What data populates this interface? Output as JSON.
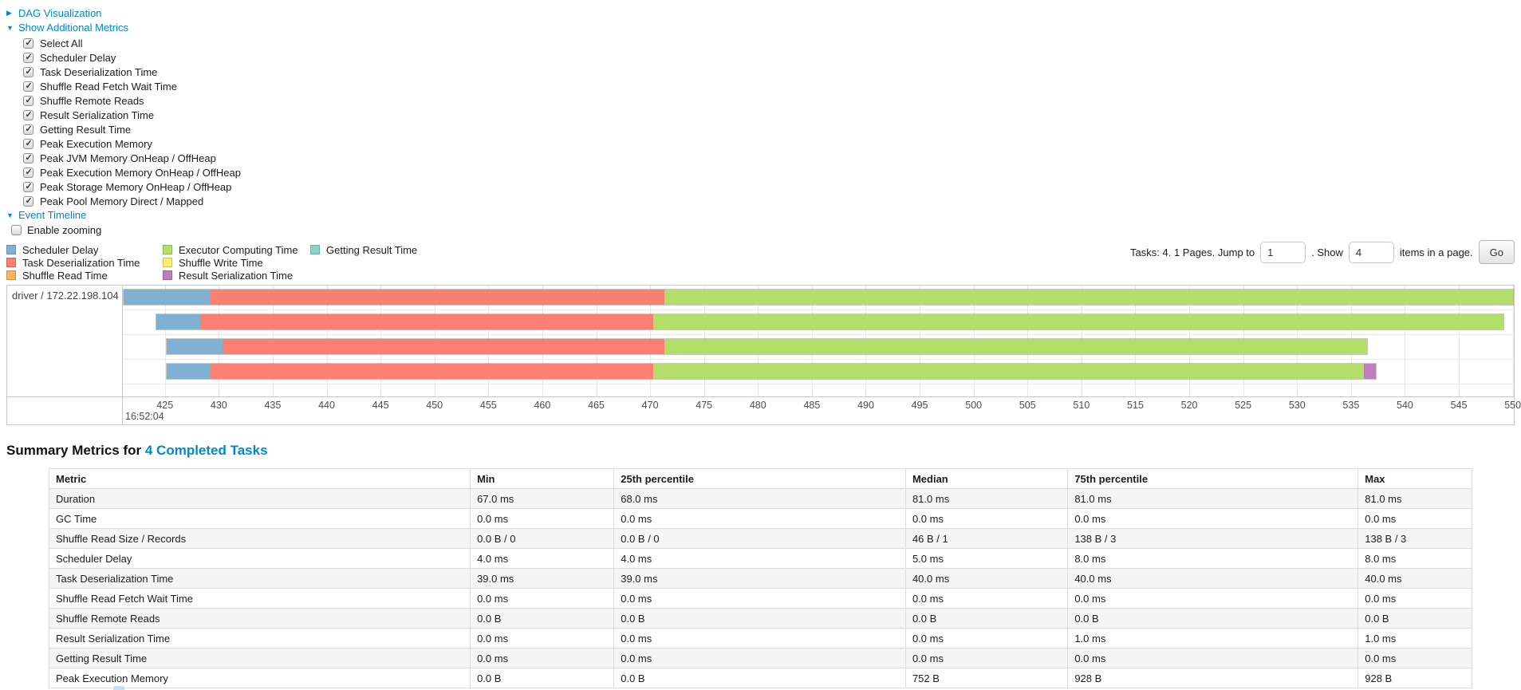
{
  "colors": {
    "link": "#0088cc",
    "scheduler_delay": "#80B1D3",
    "task_deserialization": "#FB8072",
    "shuffle_read": "#FDB462",
    "executor_computing": "#B3DE69",
    "shuffle_write": "#FFED6F",
    "result_serialization": "#BC80BD",
    "getting_result": "#8DD3C7"
  },
  "toggles": {
    "dag": {
      "label": "DAG Visualization",
      "state": "collapsed"
    },
    "additional_metrics": {
      "label": "Show Additional Metrics",
      "state": "expanded"
    },
    "event_timeline": {
      "label": "Event Timeline",
      "state": "expanded"
    }
  },
  "metrics_checkboxes": [
    {
      "label": "Select All",
      "checked": true
    },
    {
      "label": "Scheduler Delay",
      "checked": true
    },
    {
      "label": "Task Deserialization Time",
      "checked": true
    },
    {
      "label": "Shuffle Read Fetch Wait Time",
      "checked": true
    },
    {
      "label": "Shuffle Remote Reads",
      "checked": true
    },
    {
      "label": "Result Serialization Time",
      "checked": true
    },
    {
      "label": "Getting Result Time",
      "checked": true
    },
    {
      "label": "Peak Execution Memory",
      "checked": true
    },
    {
      "label": "Peak JVM Memory OnHeap / OffHeap",
      "checked": true
    },
    {
      "label": "Peak Execution Memory OnHeap / OffHeap",
      "checked": true
    },
    {
      "label": "Peak Storage Memory OnHeap / OffHeap",
      "checked": true
    },
    {
      "label": "Peak Pool Memory Direct / Mapped",
      "checked": true
    }
  ],
  "enable_zooming": {
    "label": "Enable zooming",
    "checked": false
  },
  "legend": {
    "columns": [
      [
        {
          "label": "Scheduler Delay",
          "color": "#80B1D3"
        },
        {
          "label": "Task Deserialization Time",
          "color": "#FB8072"
        },
        {
          "label": "Shuffle Read Time",
          "color": "#FDB462"
        }
      ],
      [
        {
          "label": "Executor Computing Time",
          "color": "#B3DE69"
        },
        {
          "label": "Shuffle Write Time",
          "color": "#FFED6F"
        },
        {
          "label": "Result Serialization Time",
          "color": "#BC80BD"
        }
      ],
      [
        {
          "label": "Getting Result Time",
          "color": "#8DD3C7"
        }
      ]
    ]
  },
  "pagination": {
    "summary": "Tasks: 4. 1 Pages. Jump to",
    "jump_value": "1",
    "between": ". Show",
    "page_size_value": "4",
    "suffix": "items in a page.",
    "go_label": "Go"
  },
  "chart_data": {
    "type": "timeline",
    "group_label": "driver / 172.22.198.104",
    "time_anchor": "16:52:04",
    "unit": "ms after 16:52:04",
    "axis": {
      "min": 421.1,
      "max": 550.1,
      "tick_interval": 5,
      "ticks": [
        425,
        430,
        435,
        440,
        445,
        450,
        455,
        460,
        465,
        470,
        475,
        480,
        485,
        490,
        495,
        500,
        505,
        510,
        515,
        520,
        525,
        530,
        535,
        540,
        545,
        550
      ]
    },
    "tasks": [
      {
        "segments": [
          {
            "name": "Scheduler Delay",
            "color": "#80B1D3",
            "start": 421.1,
            "end": 429.2
          },
          {
            "name": "Task Deserialization Time",
            "color": "#FB8072",
            "start": 429.2,
            "end": 471.3
          },
          {
            "name": "Executor Computing Time",
            "color": "#B3DE69",
            "start": 471.3,
            "end": 550.1
          }
        ]
      },
      {
        "segments": [
          {
            "name": "Scheduler Delay",
            "color": "#80B1D3",
            "start": 424.1,
            "end": 428.2
          },
          {
            "name": "Task Deserialization Time",
            "color": "#FB8072",
            "start": 428.2,
            "end": 470.3
          },
          {
            "name": "Executor Computing Time",
            "color": "#B3DE69",
            "start": 470.3,
            "end": 549.2
          }
        ]
      },
      {
        "segments": [
          {
            "name": "Scheduler Delay",
            "color": "#80B1D3",
            "start": 425.1,
            "end": 430.3
          },
          {
            "name": "Task Deserialization Time",
            "color": "#FB8072",
            "start": 430.3,
            "end": 471.3
          },
          {
            "name": "Executor Computing Time",
            "color": "#B3DE69",
            "start": 471.3,
            "end": 536.6
          }
        ]
      },
      {
        "segments": [
          {
            "name": "Scheduler Delay",
            "color": "#80B1D3",
            "start": 425.1,
            "end": 429.2
          },
          {
            "name": "Task Deserialization Time",
            "color": "#FB8072",
            "start": 429.2,
            "end": 470.3
          },
          {
            "name": "Executor Computing Time",
            "color": "#B3DE69",
            "start": 470.3,
            "end": 536.3
          },
          {
            "name": "Result Serialization Time",
            "color": "#BC80BD",
            "start": 536.3,
            "end": 537.4
          }
        ]
      }
    ]
  },
  "summary_table": {
    "title": "Summary Metrics for",
    "title_link": "4 Completed Tasks",
    "columns": [
      "Metric",
      "Min",
      "25th percentile",
      "Median",
      "75th percentile",
      "Max"
    ],
    "rows": [
      [
        "Duration",
        "67.0 ms",
        "68.0 ms",
        "81.0 ms",
        "81.0 ms",
        "81.0 ms"
      ],
      [
        "GC Time",
        "0.0 ms",
        "0.0 ms",
        "0.0 ms",
        "0.0 ms",
        "0.0 ms"
      ],
      [
        "Shuffle Read Size / Records",
        "0.0 B / 0",
        "0.0 B / 0",
        "46 B / 1",
        "138 B / 3",
        "138 B / 3"
      ],
      [
        "Scheduler Delay",
        "4.0 ms",
        "4.0 ms",
        "5.0 ms",
        "8.0 ms",
        "8.0 ms"
      ],
      [
        "Task Deserialization Time",
        "39.0 ms",
        "39.0 ms",
        "40.0 ms",
        "40.0 ms",
        "40.0 ms"
      ],
      [
        "Shuffle Read Fetch Wait Time",
        "0.0 ms",
        "0.0 ms",
        "0.0 ms",
        "0.0 ms",
        "0.0 ms"
      ],
      [
        "Shuffle Remote Reads",
        "0.0 B",
        "0.0 B",
        "0.0 B",
        "0.0 B",
        "0.0 B"
      ],
      [
        "Result Serialization Time",
        "0.0 ms",
        "0.0 ms",
        "0.0 ms",
        "1.0 ms",
        "1.0 ms"
      ],
      [
        "Getting Result Time",
        "0.0 ms",
        "0.0 ms",
        "0.0 ms",
        "0.0 ms",
        "0.0 ms"
      ],
      [
        "Peak Execution Memory",
        "0.0 B",
        "0.0 B",
        "752 B",
        "928 B",
        "928 B"
      ]
    ]
  }
}
